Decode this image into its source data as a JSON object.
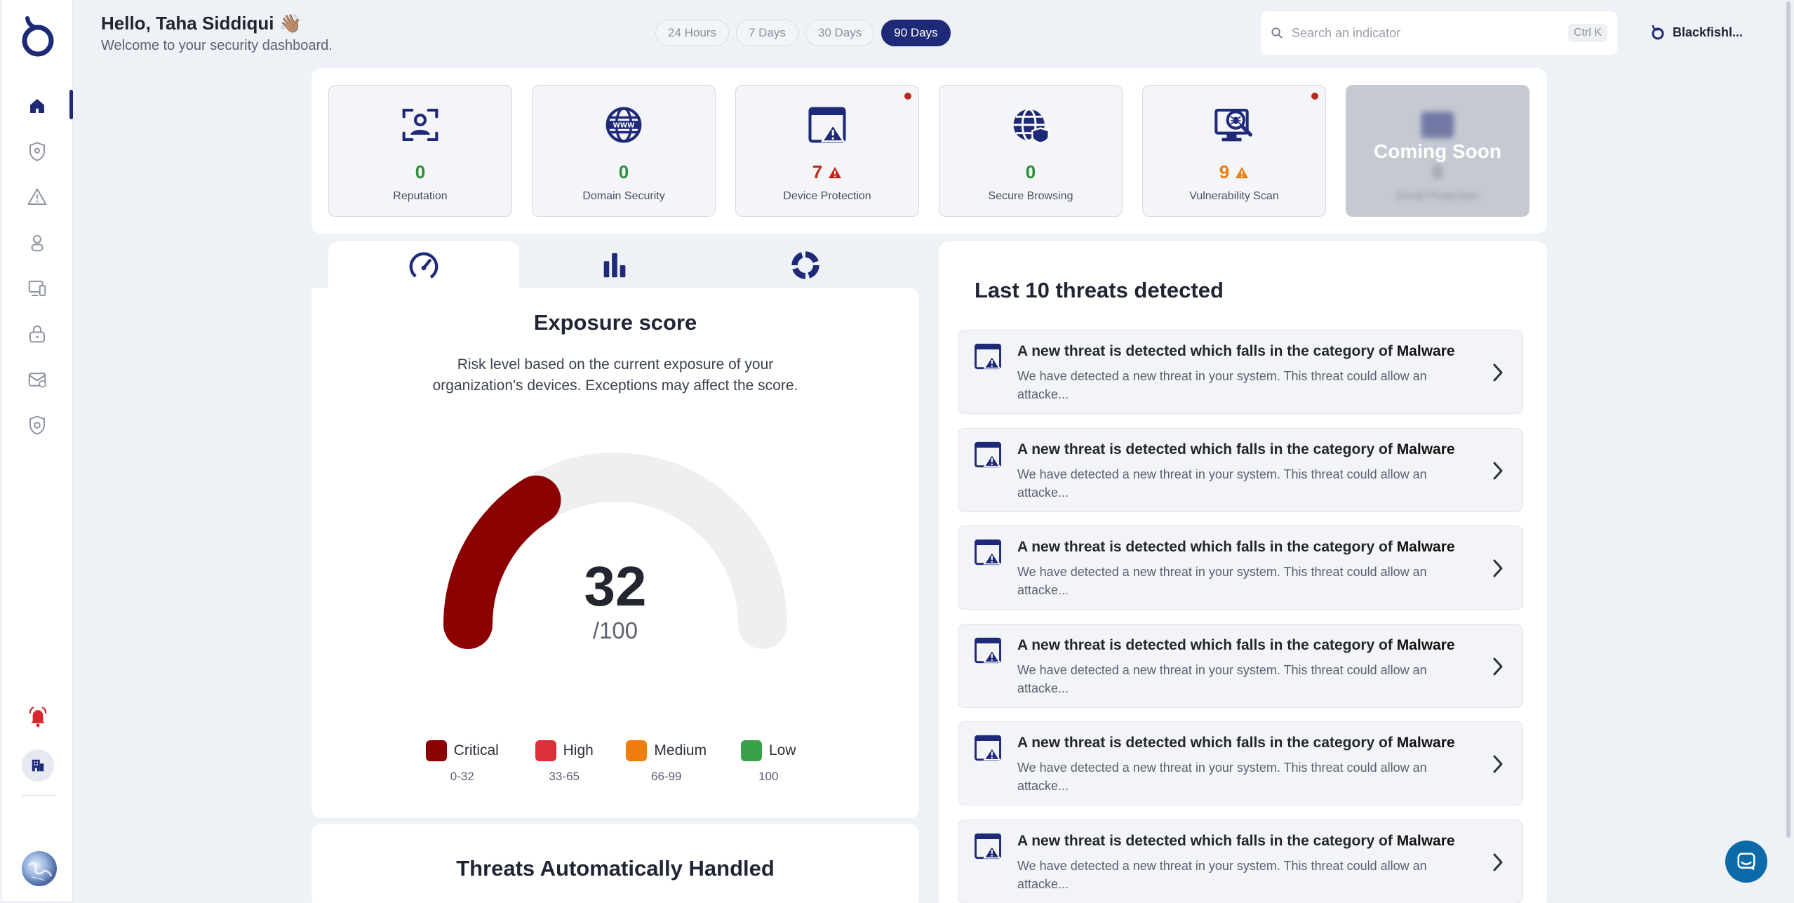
{
  "header": {
    "greeting": "Hello, Taha Siddiqui 👋🏽",
    "subtitle": "Welcome to your security dashboard."
  },
  "time_ranges": [
    "24 Hours",
    "7 Days",
    "30 Days",
    "90 Days"
  ],
  "active_range": "90 Days",
  "search": {
    "placeholder": "Search an indicator",
    "shortcut": "Ctrl K"
  },
  "org_name": "Blackfishl...",
  "cards": [
    {
      "label": "Reputation",
      "value": "0",
      "icon": "reputation-icon"
    },
    {
      "label": "Domain Security",
      "value": "0",
      "icon": "domain-icon"
    },
    {
      "label": "Device Protection",
      "value": "7",
      "icon": "device-protection-icon"
    },
    {
      "label": "Secure Browsing",
      "value": "0",
      "icon": "secure-browsing-icon"
    },
    {
      "label": "Vulnerability Scan",
      "value": "9",
      "icon": "vulnerability-scan-icon"
    },
    {
      "label": "Email Protection",
      "value": "0",
      "icon": "email-protection-icon",
      "overlay": "Coming Soon"
    }
  ],
  "exposure": {
    "title": "Exposure score",
    "description": "Risk level based on the current exposure of your organization's devices. Exceptions may affect the score.",
    "score": 32,
    "score_display": "32",
    "max_display": "/100",
    "legend": [
      {
        "label": "Critical",
        "range": "0-32",
        "color": "#8b0000"
      },
      {
        "label": "High",
        "range": "33-65",
        "color": "#dc2f3c"
      },
      {
        "label": "Medium",
        "range": "66-99",
        "color": "#ef7d0f"
      },
      {
        "label": "Low",
        "range": "100",
        "color": "#37a24a"
      }
    ]
  },
  "handled": {
    "title": "Threats Automatically Handled"
  },
  "threats": {
    "title": "Last 10 threats detected",
    "items": [
      {
        "title": "A new threat is detected which falls in the category of",
        "category": "Malware",
        "desc": "We have detected a new threat in your system. This threat could allow an attacke..."
      },
      {
        "title": "A new threat is detected which falls in the category of",
        "category": "Malware",
        "desc": "We have detected a new threat in your system. This threat could allow an attacke..."
      },
      {
        "title": "A new threat is detected which falls in the category of",
        "category": "Malware",
        "desc": "We have detected a new threat in your system. This threat could allow an attacke..."
      },
      {
        "title": "A new threat is detected which falls in the category of",
        "category": "Malware",
        "desc": "We have detected a new threat in your system. This threat could allow an attacke..."
      },
      {
        "title": "A new threat is detected which falls in the category of",
        "category": "Malware",
        "desc": "We have detected a new threat in your system. This threat could allow an attacke..."
      },
      {
        "title": "A new threat is detected which falls in the category of",
        "category": "Malware",
        "desc": "We have detected a new threat in your system. This threat could allow an attacke..."
      }
    ]
  },
  "colors": {
    "brand": "#1e2a78",
    "critical": "#8b0000",
    "track": "#efefef",
    "ok": "#2e8b3a",
    "warn": "#e77f0e",
    "danger": "#c0271b"
  }
}
